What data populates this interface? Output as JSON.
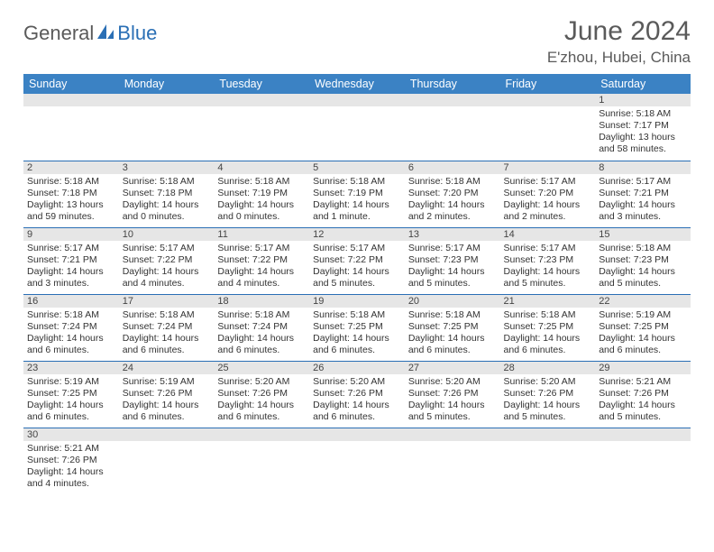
{
  "logo": {
    "text1": "General",
    "text2": "Blue"
  },
  "title": "June 2024",
  "location": "E'zhou, Hubei, China",
  "colors": {
    "header_bg": "#3b82c4",
    "header_text": "#ffffff",
    "daynum_bg": "#e6e6e6",
    "border": "#2a6fb5",
    "body_text": "#333333",
    "title_text": "#5a5a5a"
  },
  "weekdays": [
    "Sunday",
    "Monday",
    "Tuesday",
    "Wednesday",
    "Thursday",
    "Friday",
    "Saturday"
  ],
  "weeks": [
    [
      null,
      null,
      null,
      null,
      null,
      null,
      {
        "n": "1",
        "sr": "Sunrise: 5:18 AM",
        "ss": "Sunset: 7:17 PM",
        "dl": "Daylight: 13 hours and 58 minutes."
      }
    ],
    [
      {
        "n": "2",
        "sr": "Sunrise: 5:18 AM",
        "ss": "Sunset: 7:18 PM",
        "dl": "Daylight: 13 hours and 59 minutes."
      },
      {
        "n": "3",
        "sr": "Sunrise: 5:18 AM",
        "ss": "Sunset: 7:18 PM",
        "dl": "Daylight: 14 hours and 0 minutes."
      },
      {
        "n": "4",
        "sr": "Sunrise: 5:18 AM",
        "ss": "Sunset: 7:19 PM",
        "dl": "Daylight: 14 hours and 0 minutes."
      },
      {
        "n": "5",
        "sr": "Sunrise: 5:18 AM",
        "ss": "Sunset: 7:19 PM",
        "dl": "Daylight: 14 hours and 1 minute."
      },
      {
        "n": "6",
        "sr": "Sunrise: 5:18 AM",
        "ss": "Sunset: 7:20 PM",
        "dl": "Daylight: 14 hours and 2 minutes."
      },
      {
        "n": "7",
        "sr": "Sunrise: 5:17 AM",
        "ss": "Sunset: 7:20 PM",
        "dl": "Daylight: 14 hours and 2 minutes."
      },
      {
        "n": "8",
        "sr": "Sunrise: 5:17 AM",
        "ss": "Sunset: 7:21 PM",
        "dl": "Daylight: 14 hours and 3 minutes."
      }
    ],
    [
      {
        "n": "9",
        "sr": "Sunrise: 5:17 AM",
        "ss": "Sunset: 7:21 PM",
        "dl": "Daylight: 14 hours and 3 minutes."
      },
      {
        "n": "10",
        "sr": "Sunrise: 5:17 AM",
        "ss": "Sunset: 7:22 PM",
        "dl": "Daylight: 14 hours and 4 minutes."
      },
      {
        "n": "11",
        "sr": "Sunrise: 5:17 AM",
        "ss": "Sunset: 7:22 PM",
        "dl": "Daylight: 14 hours and 4 minutes."
      },
      {
        "n": "12",
        "sr": "Sunrise: 5:17 AM",
        "ss": "Sunset: 7:22 PM",
        "dl": "Daylight: 14 hours and 5 minutes."
      },
      {
        "n": "13",
        "sr": "Sunrise: 5:17 AM",
        "ss": "Sunset: 7:23 PM",
        "dl": "Daylight: 14 hours and 5 minutes."
      },
      {
        "n": "14",
        "sr": "Sunrise: 5:17 AM",
        "ss": "Sunset: 7:23 PM",
        "dl": "Daylight: 14 hours and 5 minutes."
      },
      {
        "n": "15",
        "sr": "Sunrise: 5:18 AM",
        "ss": "Sunset: 7:23 PM",
        "dl": "Daylight: 14 hours and 5 minutes."
      }
    ],
    [
      {
        "n": "16",
        "sr": "Sunrise: 5:18 AM",
        "ss": "Sunset: 7:24 PM",
        "dl": "Daylight: 14 hours and 6 minutes."
      },
      {
        "n": "17",
        "sr": "Sunrise: 5:18 AM",
        "ss": "Sunset: 7:24 PM",
        "dl": "Daylight: 14 hours and 6 minutes."
      },
      {
        "n": "18",
        "sr": "Sunrise: 5:18 AM",
        "ss": "Sunset: 7:24 PM",
        "dl": "Daylight: 14 hours and 6 minutes."
      },
      {
        "n": "19",
        "sr": "Sunrise: 5:18 AM",
        "ss": "Sunset: 7:25 PM",
        "dl": "Daylight: 14 hours and 6 minutes."
      },
      {
        "n": "20",
        "sr": "Sunrise: 5:18 AM",
        "ss": "Sunset: 7:25 PM",
        "dl": "Daylight: 14 hours and 6 minutes."
      },
      {
        "n": "21",
        "sr": "Sunrise: 5:18 AM",
        "ss": "Sunset: 7:25 PM",
        "dl": "Daylight: 14 hours and 6 minutes."
      },
      {
        "n": "22",
        "sr": "Sunrise: 5:19 AM",
        "ss": "Sunset: 7:25 PM",
        "dl": "Daylight: 14 hours and 6 minutes."
      }
    ],
    [
      {
        "n": "23",
        "sr": "Sunrise: 5:19 AM",
        "ss": "Sunset: 7:25 PM",
        "dl": "Daylight: 14 hours and 6 minutes."
      },
      {
        "n": "24",
        "sr": "Sunrise: 5:19 AM",
        "ss": "Sunset: 7:26 PM",
        "dl": "Daylight: 14 hours and 6 minutes."
      },
      {
        "n": "25",
        "sr": "Sunrise: 5:20 AM",
        "ss": "Sunset: 7:26 PM",
        "dl": "Daylight: 14 hours and 6 minutes."
      },
      {
        "n": "26",
        "sr": "Sunrise: 5:20 AM",
        "ss": "Sunset: 7:26 PM",
        "dl": "Daylight: 14 hours and 6 minutes."
      },
      {
        "n": "27",
        "sr": "Sunrise: 5:20 AM",
        "ss": "Sunset: 7:26 PM",
        "dl": "Daylight: 14 hours and 5 minutes."
      },
      {
        "n": "28",
        "sr": "Sunrise: 5:20 AM",
        "ss": "Sunset: 7:26 PM",
        "dl": "Daylight: 14 hours and 5 minutes."
      },
      {
        "n": "29",
        "sr": "Sunrise: 5:21 AM",
        "ss": "Sunset: 7:26 PM",
        "dl": "Daylight: 14 hours and 5 minutes."
      }
    ],
    [
      {
        "n": "30",
        "sr": "Sunrise: 5:21 AM",
        "ss": "Sunset: 7:26 PM",
        "dl": "Daylight: 14 hours and 4 minutes."
      },
      null,
      null,
      null,
      null,
      null,
      null
    ]
  ]
}
